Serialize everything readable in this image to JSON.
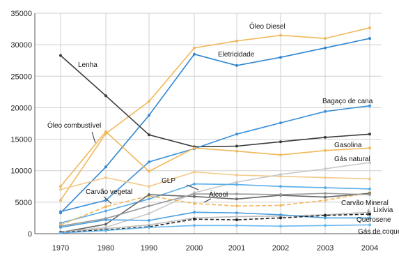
{
  "chart_data": {
    "type": "line",
    "title": "",
    "xlabel": "",
    "ylabel": "",
    "categories": [
      "1970",
      "1980",
      "1990",
      "2000",
      "2001",
      "2002",
      "2003",
      "2004"
    ],
    "ylim": [
      0,
      35000
    ],
    "yticks": [
      "0",
      "5000",
      "10000",
      "15000",
      "20000",
      "25000",
      "30000",
      "35000"
    ],
    "grid": true,
    "legend": "none",
    "series": [
      {
        "name": "Óleo Diesel",
        "color": "#f0b85a",
        "dash": "",
        "values": [
          5300,
          15900,
          21000,
          29500,
          30600,
          31500,
          31000,
          32700
        ]
      },
      {
        "name": "Eletricidade",
        "color": "#2e86d0",
        "dash": "",
        "values": [
          3300,
          10600,
          18800,
          28500,
          26700,
          28000,
          29500,
          31000
        ]
      },
      {
        "name": "Lenha",
        "color": "#3a3a3a",
        "dash": "",
        "values": [
          28300,
          21900,
          15700,
          13800,
          13900,
          14600,
          15300,
          15800
        ]
      },
      {
        "name": "Bagaço de cana",
        "color": "#3b90d8",
        "dash": "",
        "values": [
          3500,
          5300,
          11400,
          13500,
          15800,
          17600,
          19400,
          20300
        ]
      },
      {
        "name": "Óleo combustível",
        "color": "#f0b85a",
        "dash": "",
        "values": [
          7500,
          16200,
          9900,
          13600,
          13100,
          12500,
          13200,
          13600
        ]
      },
      {
        "name": "Gasolina",
        "color": "#f3c98a",
        "dash": "",
        "values": [
          7000,
          8900,
          7500,
          9800,
          9300,
          9100,
          8900,
          8700
        ]
      },
      {
        "name": "Gás natural",
        "color": "#c8c8c8",
        "dash": "",
        "values": [
          300,
          1000,
          3200,
          6500,
          8200,
          9400,
          10300,
          11300
        ]
      },
      {
        "name": "GLP",
        "color": "#5aaee8",
        "dash": "",
        "values": [
          1700,
          3600,
          5500,
          7900,
          7800,
          7500,
          7300,
          7100
        ]
      },
      {
        "name": "Carvão vegetal",
        "color": "#f0b85a",
        "dash": "6,3",
        "values": [
          1400,
          4300,
          6000,
          4800,
          4400,
          4500,
          5300,
          6500
        ]
      },
      {
        "name": "Álcool",
        "color": "#666666",
        "dash": "",
        "values": [
          200,
          1500,
          6200,
          5900,
          5500,
          6100,
          5800,
          6400
        ]
      },
      {
        "name": "Carvão Mineral",
        "color": "#9a9a9a",
        "dash": "",
        "values": [
          1200,
          2400,
          4400,
          6300,
          6300,
          6200,
          6400,
          6200
        ]
      },
      {
        "name": "Lixívia",
        "color": "#bdbdbd",
        "dash": "",
        "values": [
          300,
          800,
          1400,
          2500,
          2700,
          2800,
          3000,
          3400
        ]
      },
      {
        "name": "Querosene",
        "color": "#4aa0e0",
        "dash": "",
        "values": [
          1000,
          2200,
          2100,
          3400,
          3300,
          3000,
          2500,
          2500
        ]
      },
      {
        "name": "Gás de coqueria",
        "color": "#222222",
        "dash": "5,3",
        "values": [
          200,
          600,
          1100,
          2300,
          2200,
          2500,
          2900,
          3100
        ]
      },
      {
        "name": "",
        "color": "#6ab8ee",
        "dash": "",
        "values": [
          100,
          500,
          1000,
          1300,
          1300,
          1200,
          1300,
          1400
        ]
      }
    ],
    "labels": [
      {
        "text": "Óleo Diesel"
      },
      {
        "text": "Eletricidade"
      },
      {
        "text": "Lenha"
      },
      {
        "text": "Bagaço de cana"
      },
      {
        "text": "Óleo combustível"
      },
      {
        "text": "Gasolina"
      },
      {
        "text": "Gás natural"
      },
      {
        "text": "GLP"
      },
      {
        "text": "Carvão vegetal"
      },
      {
        "text": "Álcool"
      },
      {
        "text": "Carvão Mineral"
      },
      {
        "text": "Lixívia"
      },
      {
        "text": "Querosene"
      },
      {
        "text": "Gás de coqueria"
      }
    ]
  }
}
